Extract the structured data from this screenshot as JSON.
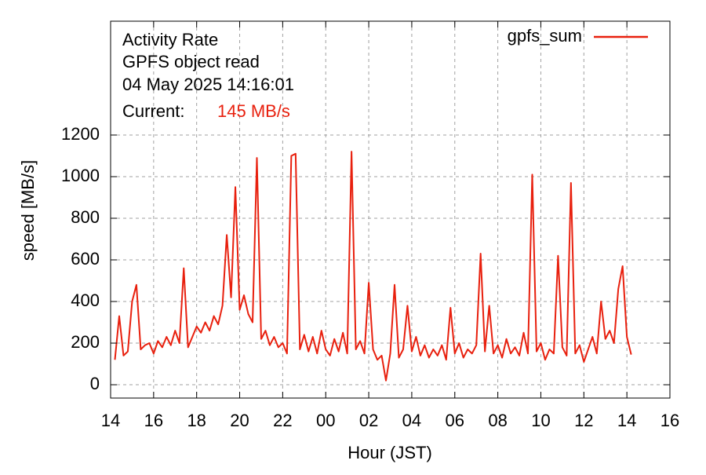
{
  "chart_data": {
    "type": "line",
    "title": "Activity Rate",
    "subtitle": "GPFS object read",
    "timestamp": "04 May 2025 14:16:01",
    "current_label": "Current:",
    "current_value": "145 MB/s",
    "x_label": "Hour (JST)",
    "y_label": "speed [MB/s]",
    "xlim": [
      14,
      40
    ],
    "xticks": [
      14,
      16,
      18,
      20,
      22,
      {
        "value": 24,
        "label": "00"
      },
      {
        "value": 26,
        "label": "02"
      },
      {
        "value": 28,
        "label": "04"
      },
      {
        "value": 30,
        "label": "06"
      },
      {
        "value": 32,
        "label": "08"
      },
      {
        "value": 34,
        "label": "10"
      },
      {
        "value": 36,
        "label": "12"
      },
      {
        "value": 38,
        "label": "14"
      },
      {
        "value": 40,
        "label": "16"
      }
    ],
    "ylim": [
      -64,
      1747
    ],
    "yticks": [
      0,
      200,
      400,
      600,
      800,
      1000,
      1200
    ],
    "grid": true,
    "legend": "top-right",
    "x": [
      14.2,
      14.4,
      14.6,
      14.8,
      15.0,
      15.2,
      15.4,
      15.6,
      15.8,
      16.0,
      16.2,
      16.4,
      16.6,
      16.8,
      17.0,
      17.2,
      17.4,
      17.6,
      17.8,
      18.0,
      18.2,
      18.4,
      18.6,
      18.8,
      19.0,
      19.2,
      19.4,
      19.6,
      19.8,
      20.0,
      20.2,
      20.4,
      20.6,
      20.8,
      21.0,
      21.2,
      21.4,
      21.6,
      21.8,
      22.0,
      22.2,
      22.4,
      22.6,
      22.8,
      23.0,
      23.2,
      23.4,
      23.6,
      23.8,
      24.0,
      24.2,
      24.4,
      24.6,
      24.8,
      25.0,
      25.2,
      25.4,
      25.6,
      25.8,
      26.0,
      26.2,
      26.4,
      26.6,
      26.8,
      27.0,
      27.2,
      27.4,
      27.6,
      27.8,
      28.0,
      28.2,
      28.4,
      28.6,
      28.8,
      29.0,
      29.2,
      29.4,
      29.6,
      29.8,
      30.0,
      30.2,
      30.4,
      30.6,
      30.8,
      31.0,
      31.2,
      31.4,
      31.6,
      31.8,
      32.0,
      32.2,
      32.4,
      32.6,
      32.8,
      33.0,
      33.2,
      33.4,
      33.6,
      33.8,
      34.0,
      34.2,
      34.4,
      34.6,
      34.8,
      35.0,
      35.2,
      35.4,
      35.6,
      35.8,
      36.0,
      36.2,
      36.4,
      36.6,
      36.8,
      37.0,
      37.2,
      37.4,
      37.6,
      37.8,
      38.0,
      38.2
    ],
    "series": [
      {
        "name": "gpfs_sum",
        "color": "#e8200e",
        "values": [
          120,
          330,
          140,
          160,
          400,
          480,
          170,
          190,
          200,
          150,
          210,
          180,
          230,
          190,
          260,
          200,
          560,
          180,
          230,
          280,
          250,
          300,
          260,
          330,
          290,
          380,
          720,
          420,
          950,
          360,
          430,
          340,
          300,
          1090,
          220,
          260,
          190,
          230,
          180,
          200,
          150,
          1100,
          1110,
          170,
          240,
          160,
          230,
          150,
          260,
          170,
          140,
          220,
          160,
          250,
          150,
          1120,
          170,
          210,
          150,
          490,
          170,
          120,
          140,
          20,
          150,
          480,
          130,
          170,
          380,
          160,
          230,
          140,
          190,
          130,
          170,
          140,
          190,
          120,
          370,
          150,
          200,
          130,
          170,
          150,
          190,
          630,
          160,
          380,
          150,
          190,
          130,
          220,
          150,
          180,
          140,
          250,
          150,
          1010,
          160,
          200,
          120,
          170,
          150,
          620,
          180,
          140,
          970,
          150,
          190,
          110,
          170,
          230,
          150,
          400,
          220,
          260,
          200,
          460,
          570,
          230,
          145
        ]
      }
    ]
  }
}
